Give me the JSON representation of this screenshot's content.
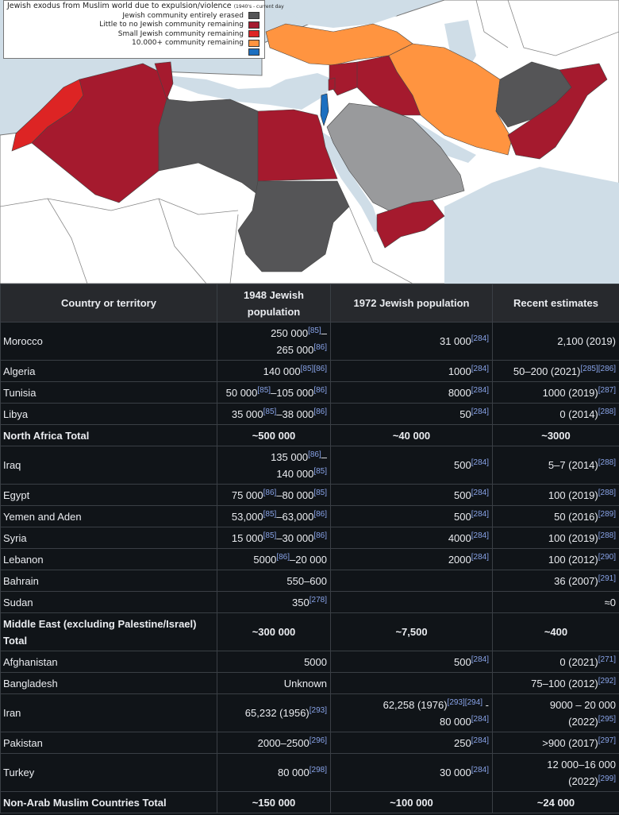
{
  "map": {
    "legend_title": "Jewish exodus from Muslim world due to expulsion/violence",
    "legend_title_small": "(1940's - current day",
    "legend_items": [
      {
        "label": "Jewish community entirely erased",
        "color": "#555557"
      },
      {
        "label": "Little to no Jewish community remaining",
        "color": "#a51a2e"
      },
      {
        "label": "Small Jewish community remaining",
        "color": "#dd2424"
      },
      {
        "label": "10.000+ community remaining",
        "color": "#ff9440"
      },
      {
        "label": "",
        "color": "#1c6fc0"
      }
    ]
  },
  "table": {
    "headers": [
      "Country or territory",
      "1948 Jewish population",
      "1972 Jewish population",
      "Recent estimates"
    ],
    "rows": [
      {
        "name": "Morocco",
        "total": false,
        "c1": [
          [
            {
              "t": "250 000"
            },
            {
              "r": "[85]"
            },
            {
              "t": "–"
            }
          ],
          [
            {
              "t": "265 000"
            },
            {
              "r": "[86]"
            }
          ]
        ],
        "c2": [
          [
            {
              "t": "31 000"
            },
            {
              "r": "[284]"
            }
          ]
        ],
        "c3": [
          [
            {
              "t": "2,100 (2019)"
            }
          ]
        ]
      },
      {
        "name": "Algeria",
        "total": false,
        "c1": [
          [
            {
              "t": "140 000"
            },
            {
              "r": "[85]"
            },
            {
              "r": "[86]"
            }
          ]
        ],
        "c2": [
          [
            {
              "t": "1000"
            },
            {
              "r": "[284]"
            }
          ]
        ],
        "c3": [
          [
            {
              "t": "50–200 (2021)"
            },
            {
              "r": "[285]"
            },
            {
              "r": "[286]"
            }
          ]
        ]
      },
      {
        "name": "Tunisia",
        "total": false,
        "c1": [
          [
            {
              "t": "50 000"
            },
            {
              "r": "[85]"
            },
            {
              "t": "–105 000"
            },
            {
              "r": "[86]"
            }
          ]
        ],
        "c2": [
          [
            {
              "t": "8000"
            },
            {
              "r": "[284]"
            }
          ]
        ],
        "c3": [
          [
            {
              "t": "1000 (2019)"
            },
            {
              "r": "[287]"
            }
          ]
        ]
      },
      {
        "name": "Libya",
        "total": false,
        "c1": [
          [
            {
              "t": "35 000"
            },
            {
              "r": "[85]"
            },
            {
              "t": "–38 000"
            },
            {
              "r": "[86]"
            }
          ]
        ],
        "c2": [
          [
            {
              "t": "50"
            },
            {
              "r": "[284]"
            }
          ]
        ],
        "c3": [
          [
            {
              "t": "0 (2014)"
            },
            {
              "r": "[288]"
            }
          ]
        ]
      },
      {
        "name": "North Africa Total",
        "total": true,
        "c1": [
          [
            {
              "t": "~500 000"
            }
          ]
        ],
        "c2": [
          [
            {
              "t": "~40 000"
            }
          ]
        ],
        "c3": [
          [
            {
              "t": "~3000"
            }
          ]
        ]
      },
      {
        "name": "Iraq",
        "total": false,
        "c1": [
          [
            {
              "t": "135 000"
            },
            {
              "r": "[86]"
            },
            {
              "t": "–"
            }
          ],
          [
            {
              "t": "140 000"
            },
            {
              "r": "[85]"
            }
          ]
        ],
        "c2": [
          [
            {
              "t": "500"
            },
            {
              "r": "[284]"
            }
          ]
        ],
        "c3": [
          [
            {
              "t": "5–7 (2014)"
            },
            {
              "r": "[288]"
            }
          ]
        ]
      },
      {
        "name": "Egypt",
        "total": false,
        "c1": [
          [
            {
              "t": "75 000"
            },
            {
              "r": "[86]"
            },
            {
              "t": "–80 000"
            },
            {
              "r": "[85]"
            }
          ]
        ],
        "c2": [
          [
            {
              "t": "500"
            },
            {
              "r": "[284]"
            }
          ]
        ],
        "c3": [
          [
            {
              "t": "100 (2019)"
            },
            {
              "r": "[288]"
            }
          ]
        ]
      },
      {
        "name": "Yemen and Aden",
        "total": false,
        "c1": [
          [
            {
              "t": "53,000"
            },
            {
              "r": "[85]"
            },
            {
              "t": "–63,000"
            },
            {
              "r": "[86]"
            }
          ]
        ],
        "c2": [
          [
            {
              "t": "500"
            },
            {
              "r": "[284]"
            }
          ]
        ],
        "c3": [
          [
            {
              "t": "50 (2016)"
            },
            {
              "r": "[289]"
            }
          ]
        ]
      },
      {
        "name": "Syria",
        "total": false,
        "c1": [
          [
            {
              "t": "15 000"
            },
            {
              "r": "[85]"
            },
            {
              "t": "–30 000"
            },
            {
              "r": "[86]"
            }
          ]
        ],
        "c2": [
          [
            {
              "t": "4000"
            },
            {
              "r": "[284]"
            }
          ]
        ],
        "c3": [
          [
            {
              "t": "100 (2019)"
            },
            {
              "r": "[288]"
            }
          ]
        ]
      },
      {
        "name": "Lebanon",
        "total": false,
        "c1": [
          [
            {
              "t": "5000"
            },
            {
              "r": "[86]"
            },
            {
              "t": "–20 000"
            }
          ]
        ],
        "c2": [
          [
            {
              "t": "2000"
            },
            {
              "r": "[284]"
            }
          ]
        ],
        "c3": [
          [
            {
              "t": "100 (2012)"
            },
            {
              "r": "[290]"
            }
          ]
        ]
      },
      {
        "name": "Bahrain",
        "total": false,
        "c1": [
          [
            {
              "t": "550–600"
            }
          ]
        ],
        "c2": [],
        "c3": [
          [
            {
              "t": "36 (2007)"
            },
            {
              "r": "[291]"
            }
          ]
        ]
      },
      {
        "name": "Sudan",
        "total": false,
        "c1": [
          [
            {
              "t": "350"
            },
            {
              "r": "[278]"
            }
          ]
        ],
        "c2": [],
        "c3": [
          [
            {
              "t": "≈0"
            }
          ]
        ]
      },
      {
        "name": "Middle East (excluding Palestine/Israel) Total",
        "total": true,
        "c1": [
          [
            {
              "t": "~300 000"
            }
          ]
        ],
        "c2": [
          [
            {
              "t": "~7,500"
            }
          ]
        ],
        "c3": [
          [
            {
              "t": "~400"
            }
          ]
        ]
      },
      {
        "name": "Afghanistan",
        "total": false,
        "c1": [
          [
            {
              "t": "5000"
            }
          ]
        ],
        "c2": [
          [
            {
              "t": "500"
            },
            {
              "r": "[284]"
            }
          ]
        ],
        "c3": [
          [
            {
              "t": "0 (2021)"
            },
            {
              "r": "[271]"
            }
          ]
        ]
      },
      {
        "name": "Bangladesh",
        "total": false,
        "c1": [
          [
            {
              "t": "Unknown"
            }
          ]
        ],
        "c2": [],
        "c3": [
          [
            {
              "t": "75–100 (2012)"
            },
            {
              "r": "[292]"
            }
          ]
        ]
      },
      {
        "name": "Iran",
        "total": false,
        "c1": [
          [
            {
              "t": "65,232 (1956)"
            },
            {
              "r": "[293]"
            }
          ]
        ],
        "c2": [
          [
            {
              "t": "62,258 (1976)"
            },
            {
              "r": "[293]"
            },
            {
              "r": "[294]"
            },
            {
              "t": " -"
            }
          ],
          [
            {
              "t": "80 000"
            },
            {
              "r": "[284]"
            }
          ]
        ],
        "c3": [
          [
            {
              "t": "9000 – 20 000"
            }
          ],
          [
            {
              "t": "(2022)"
            },
            {
              "r": "[295]"
            }
          ]
        ]
      },
      {
        "name": "Pakistan",
        "total": false,
        "c1": [
          [
            {
              "t": "2000–2500"
            },
            {
              "r": "[296]"
            }
          ]
        ],
        "c2": [
          [
            {
              "t": "250"
            },
            {
              "r": "[284]"
            }
          ]
        ],
        "c3": [
          [
            {
              "t": ">900 (2017)"
            },
            {
              "r": "[297]"
            }
          ]
        ]
      },
      {
        "name": "Turkey",
        "total": false,
        "c1": [
          [
            {
              "t": "80 000"
            },
            {
              "r": "[298]"
            }
          ]
        ],
        "c2": [
          [
            {
              "t": "30 000"
            },
            {
              "r": "[284]"
            }
          ]
        ],
        "c3": [
          [
            {
              "t": "12 000–16 000"
            }
          ],
          [
            {
              "t": "(2022)"
            },
            {
              "r": "[299]"
            }
          ]
        ]
      },
      {
        "name": "Non-Arab Muslim Countries Total",
        "total": true,
        "c1": [
          [
            {
              "t": "~150 000"
            }
          ]
        ],
        "c2": [
          [
            {
              "t": "~100 000"
            }
          ]
        ],
        "c3": [
          [
            {
              "t": "~24 000"
            }
          ]
        ]
      }
    ]
  }
}
